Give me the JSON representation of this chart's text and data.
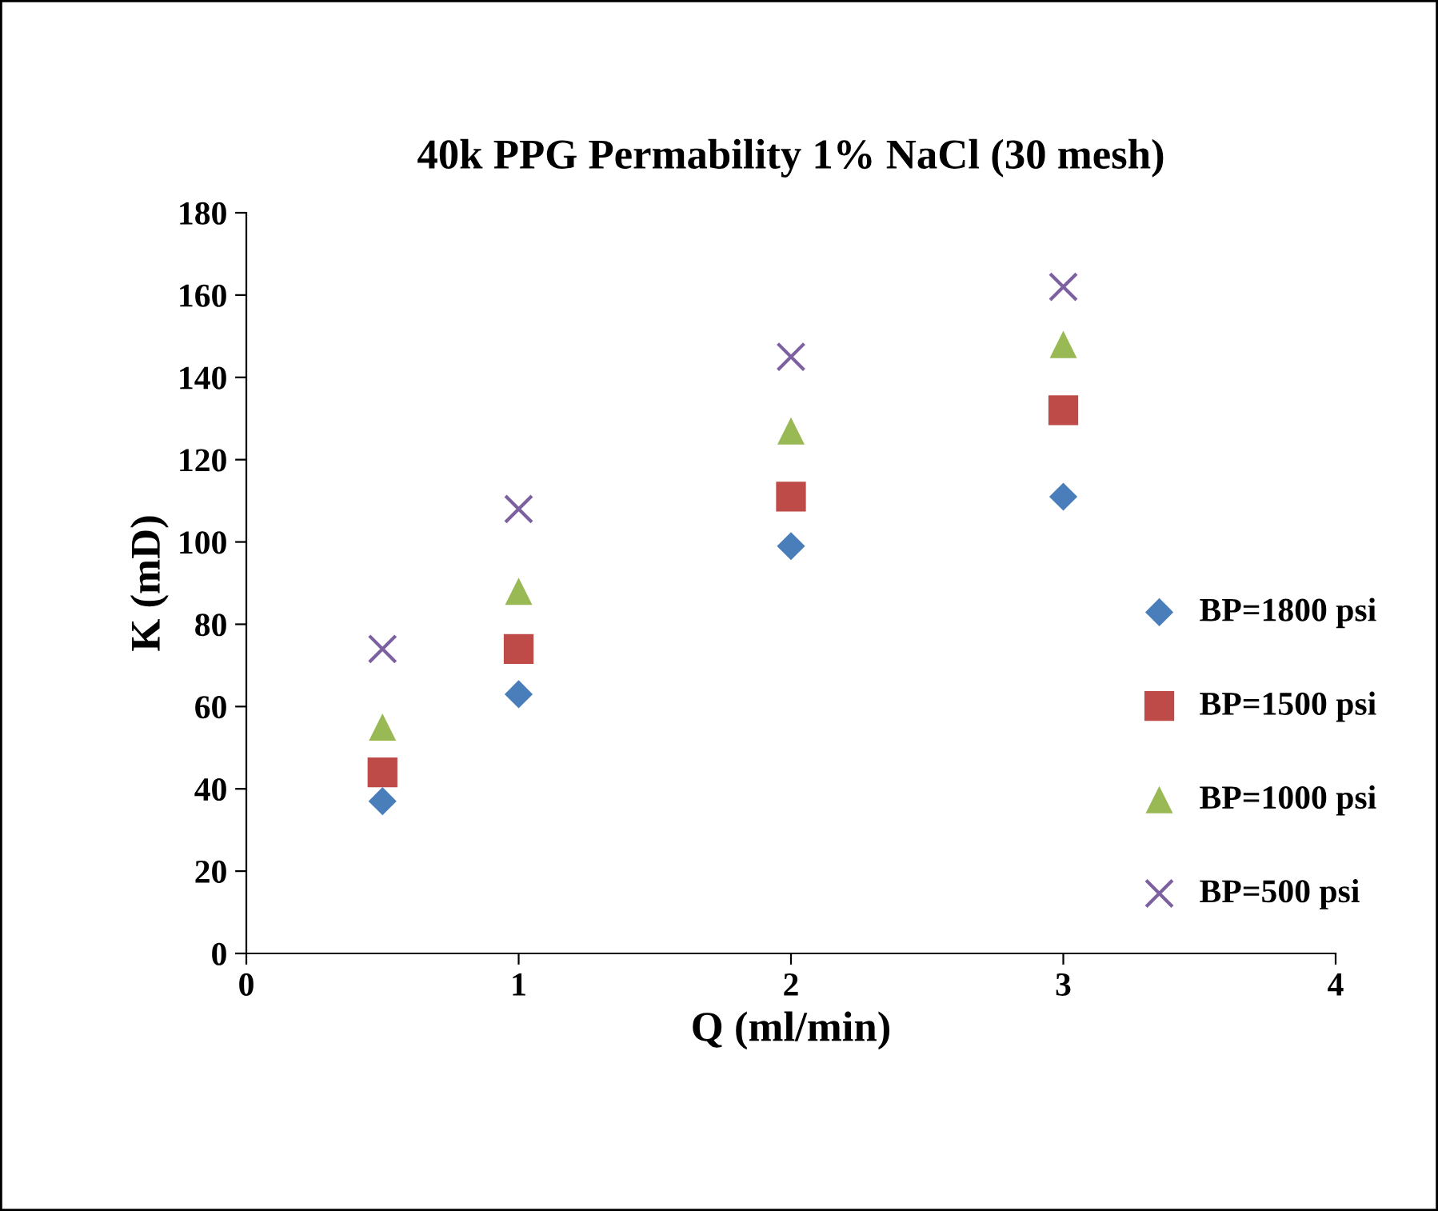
{
  "chart_data": {
    "type": "scatter",
    "title": "40k PPG Permability 1% NaCl (30 mesh)",
    "xlabel": "Q (ml/min)",
    "ylabel": "K (mD)",
    "x": [
      0.5,
      1,
      2,
      3
    ],
    "series": [
      {
        "name": "BP=1800 psi",
        "color": "#4a7ebb",
        "marker": "diamond",
        "values": [
          37,
          63,
          99,
          111
        ]
      },
      {
        "name": "BP=1500 psi",
        "color": "#be4b48",
        "marker": "square",
        "values": [
          44,
          74,
          111,
          132
        ]
      },
      {
        "name": "BP=1000 psi",
        "color": "#98b954",
        "marker": "triangle",
        "values": [
          55,
          88,
          127,
          148
        ]
      },
      {
        "name": "BP=500 psi",
        "color": "#7d60a0",
        "marker": "cross",
        "values": [
          74,
          108,
          145,
          162
        ]
      }
    ],
    "xlim": [
      0,
      4
    ],
    "xticks": [
      0,
      1,
      2,
      3,
      4
    ],
    "ylim": [
      0,
      180
    ],
    "yticks": [
      0,
      20,
      40,
      60,
      80,
      100,
      120,
      140,
      160,
      180
    ],
    "grid": false,
    "legend": "right"
  }
}
